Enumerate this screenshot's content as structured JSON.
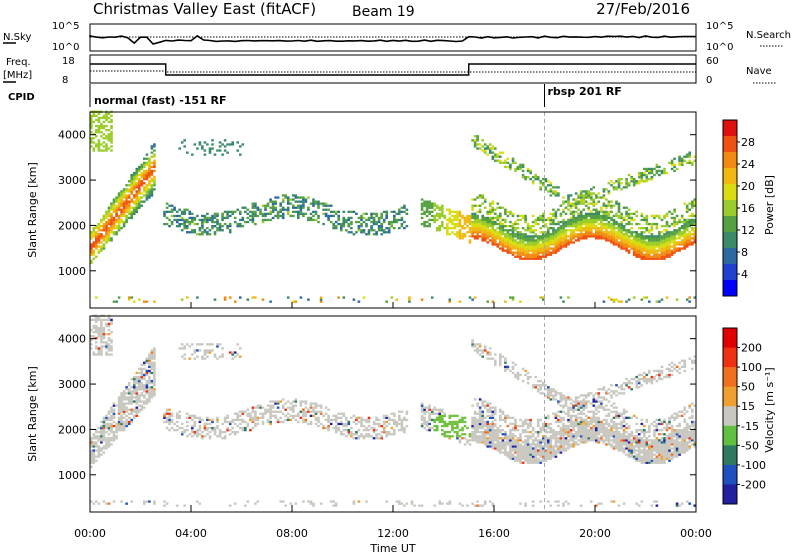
{
  "header": {
    "station": "Christmas Valley East (fitACF)",
    "beam": "Beam 19",
    "date": "27/Feb/2016"
  },
  "top_panels": {
    "nsky_label": "N.Sky",
    "nsky_ticks": [
      "10^5",
      "10^0"
    ],
    "nsearch_label": "N.Search",
    "nsearch_ticks": [
      "10^5",
      "10^0"
    ],
    "freq_label": "Freq.",
    "freq_unit": "[MHz]",
    "freq_ticks": [
      "18",
      "8"
    ],
    "nave_label": "Nave",
    "nave_ticks": [
      "60",
      "0"
    ],
    "cpid_label": "CPID",
    "cpid_segments": [
      {
        "start_ut": 0,
        "end_ut": 18,
        "label": "normal (fast) -151 RF"
      },
      {
        "start_ut": 18,
        "end_ut": 24,
        "label": "rbsp 201 RF"
      }
    ]
  },
  "chart_data": [
    {
      "type": "heatmap",
      "panel": "power",
      "ylabel": "Slant Range [km]",
      "ylim": [
        180,
        4500
      ],
      "y_ticks": [
        "4000",
        "3000",
        "2000",
        "1000"
      ],
      "y_tick_values": [
        4000,
        3000,
        2000,
        1000
      ],
      "colorbar": {
        "label": "Power [dB]",
        "ticks": [
          "28",
          "24",
          "20",
          "16",
          "12",
          "8",
          "4"
        ],
        "tick_values": [
          28,
          24,
          20,
          16,
          12,
          8,
          4
        ],
        "range": [
          0,
          30
        ],
        "colors": [
          "#0000ff",
          "#2040d0",
          "#2a6aa0",
          "#3a8a6a",
          "#55a040",
          "#9acc2a",
          "#d8dc10",
          "#f0b810",
          "#f08a10",
          "#f05010",
          "#e01010"
        ]
      }
    },
    {
      "type": "heatmap",
      "panel": "velocity",
      "ylabel": "Slant Range [km]",
      "ylim": [
        180,
        4500
      ],
      "y_ticks": [
        "4000",
        "3000",
        "2000",
        "1000"
      ],
      "y_tick_values": [
        4000,
        3000,
        2000,
        1000
      ],
      "xlabel": "Time UT",
      "x_ticks": [
        "00:00",
        "04:00",
        "08:00",
        "12:00",
        "16:00",
        "20:00",
        "00:00"
      ],
      "x_tick_values": [
        0,
        4,
        8,
        12,
        16,
        20,
        24
      ],
      "colorbar": {
        "label": "Velocity [m s⁻¹]",
        "ticks": [
          "200",
          "100",
          "50",
          "15",
          "-15",
          "-50",
          "-100",
          "-200"
        ],
        "colors": [
          "#2020a0",
          "#2050c0",
          "#2e7a60",
          "#60c040",
          "#c8c8c0",
          "#f0a030",
          "#f07020",
          "#f03010",
          "#e00000"
        ]
      }
    }
  ]
}
